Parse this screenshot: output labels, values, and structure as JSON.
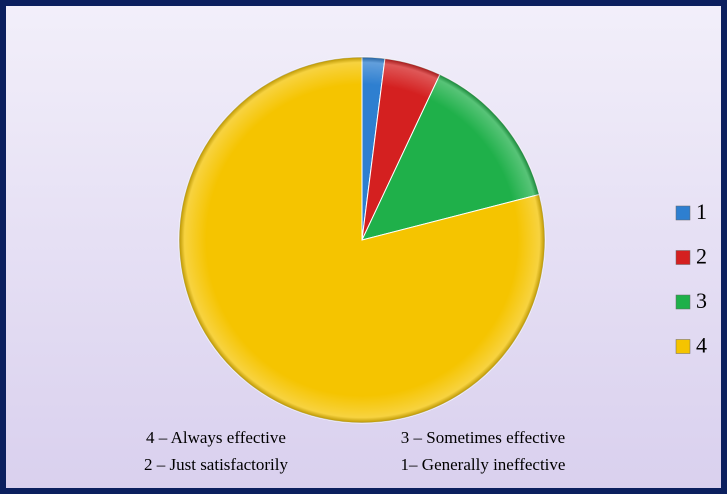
{
  "chart_data": {
    "type": "pie",
    "categories": [
      "1",
      "2",
      "3",
      "4"
    ],
    "values": [
      2,
      5,
      14,
      79
    ],
    "colors": [
      "#2e7fd0",
      "#d42020",
      "#1fb04a",
      "#f5c400"
    ],
    "legend": "right",
    "annotations": [
      "4 – Always effective",
      "3 – Sometimes effective",
      "2 – Just satisfactorily",
      "1– Generally ineffective"
    ]
  }
}
